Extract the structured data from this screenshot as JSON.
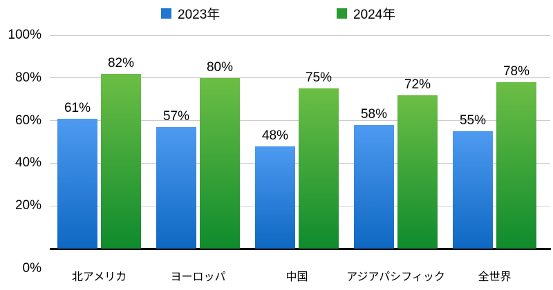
{
  "chart_data": {
    "type": "bar",
    "title": "",
    "xlabel": "",
    "ylabel": "",
    "categories": [
      "北アメリカ",
      "ヨーロッパ",
      "中国",
      "アジアパシフィック",
      "全世界"
    ],
    "series": [
      {
        "name": "2023年",
        "values": [
          61,
          57,
          48,
          58,
          55
        ],
        "labels": [
          "61%",
          "57%",
          "48%",
          "58%",
          "55%"
        ],
        "color_top": "#4E9AF1",
        "color_bottom": "#0E68C2",
        "legend_color": "#2176D2"
      },
      {
        "name": "2024年",
        "values": [
          82,
          80,
          75,
          72,
          78
        ],
        "labels": [
          "82%",
          "80%",
          "75%",
          "72%",
          "78%"
        ],
        "color_top": "#6CBE45",
        "color_bottom": "#0F8B2D",
        "legend_color": "#2A9A33"
      }
    ],
    "y_axis": {
      "min": 0,
      "max": 100,
      "ticks": [
        {
          "value": 100,
          "label": "100%"
        },
        {
          "value": 80,
          "label": "80%"
        },
        {
          "value": 60,
          "label": "60%"
        },
        {
          "value": 40,
          "label": "40%"
        },
        {
          "value": 20,
          "label": "20%"
        },
        {
          "value": 0,
          "label": "0%"
        }
      ]
    },
    "legend_position": "top",
    "grid": true,
    "colors": {
      "gridline": "#cccccc",
      "axis_line": "#000000",
      "text": "#000000",
      "background": "#ffffff"
    }
  }
}
